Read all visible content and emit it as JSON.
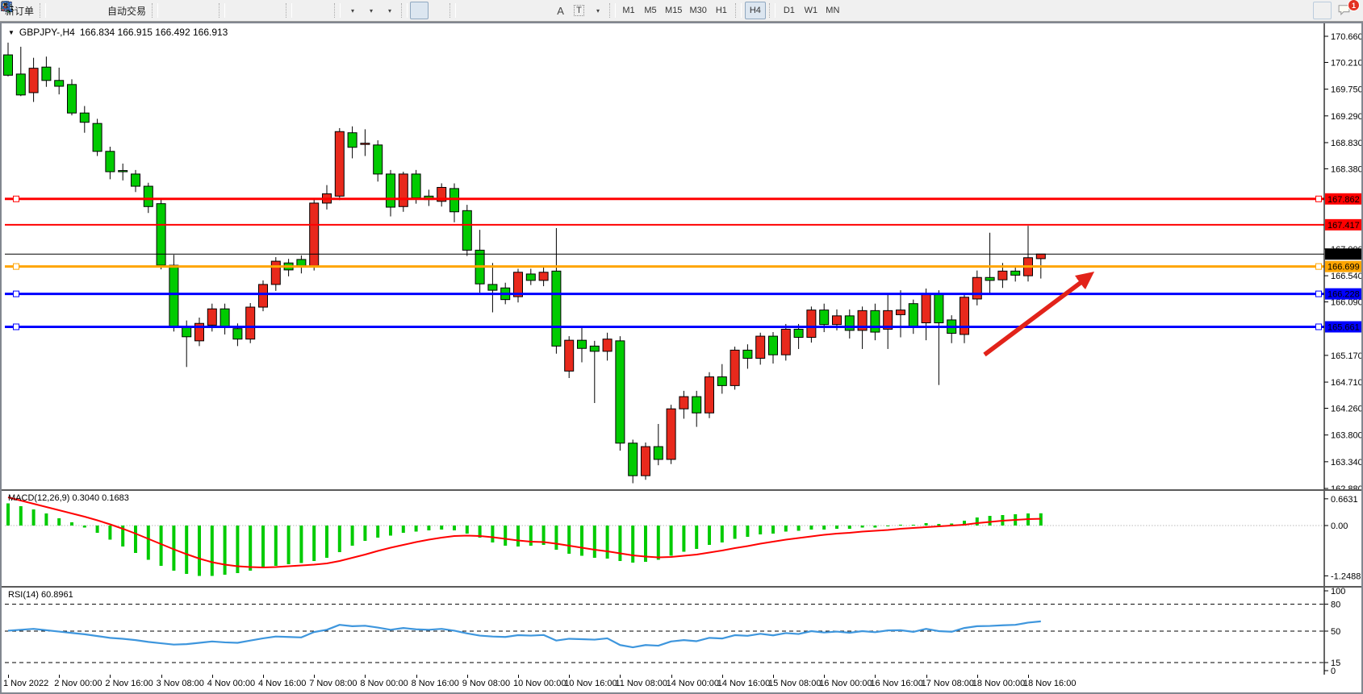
{
  "toolbar": {
    "new_order": "新订单",
    "auto_trading": "自动交易",
    "text_tool": "A",
    "label_tool": "T",
    "timeframes": [
      "M1",
      "M5",
      "M15",
      "M30",
      "H1",
      "H4",
      "D1",
      "W1",
      "MN"
    ],
    "active_timeframe": "H4",
    "chat_badge": "1"
  },
  "header": {
    "symbol": "GBPJPY-,H4",
    "ohlc": "166.834 166.915 166.492 166.913"
  },
  "price_axis": {
    "ticks": [
      170.66,
      170.21,
      169.75,
      169.29,
      168.83,
      168.38,
      167.0,
      166.54,
      166.09,
      165.17,
      164.71,
      164.26,
      163.8,
      163.34,
      162.88
    ]
  },
  "time_axis": {
    "labels": [
      "1 Nov 2022",
      "2 Nov 00:00",
      "2 Nov 16:00",
      "3 Nov 08:00",
      "4 Nov 00:00",
      "4 Nov 16:00",
      "7 Nov 08:00",
      "8 Nov 00:00",
      "8 Nov 16:00",
      "9 Nov 08:00",
      "10 Nov 00:00",
      "10 Nov 16:00",
      "11 Nov 08:00",
      "14 Nov 00:00",
      "14 Nov 16:00",
      "15 Nov 08:00",
      "16 Nov 00:00",
      "16 Nov 16:00",
      "17 Nov 08:00",
      "18 Nov 00:00",
      "18 Nov 16:00"
    ],
    "candles_per_label": 4
  },
  "hlines": [
    {
      "name": "resistance-1",
      "price": 167.862,
      "label": "167.862",
      "color": "#FF0000",
      "width": 3,
      "handles": true
    },
    {
      "name": "resistance-2",
      "price": 167.417,
      "label": "167.417",
      "color": "#FF0000",
      "width": 2,
      "handles": false
    },
    {
      "name": "current-price",
      "price": 166.913,
      "label": "166.913",
      "color": "#000000",
      "width": 1,
      "handles": false
    },
    {
      "name": "pivot-orange",
      "price": 166.699,
      "label": "166.699",
      "color": "#FFA500",
      "width": 3,
      "handles": true
    },
    {
      "name": "support-1",
      "price": 166.228,
      "label": "166.228",
      "color": "#0000FF",
      "width": 3,
      "handles": true
    },
    {
      "name": "support-2",
      "price": 165.661,
      "label": "165.661",
      "color": "#0000FF",
      "width": 3,
      "handles": true
    }
  ],
  "annotation_arrow": {
    "color": "#e2231a",
    "from_price": 165.05,
    "to_price": 166.48,
    "direction": "up-right"
  },
  "macd_panel": {
    "label": "MACD(12,26,9) 0.3040 0.1683",
    "scale_labels": [
      "0.6631",
      "0.00",
      "-1.2488"
    ],
    "scale_values": [
      0.6631,
      0.0,
      -1.2488
    ]
  },
  "rsi_panel": {
    "label": "RSI(14) 60.8961",
    "level_labels": [
      "100",
      "80",
      "50",
      "15",
      "0"
    ],
    "level_values": [
      100,
      80,
      50,
      15,
      0
    ],
    "dashed_levels": [
      80,
      50,
      15
    ]
  },
  "chart_data": {
    "type": "candlestick",
    "symbol": "GBPJPY-",
    "timeframe": "H4",
    "quote": {
      "open": 166.834,
      "high": 166.915,
      "low": 166.492,
      "close": 166.913
    },
    "price_range": [
      162.88,
      170.66
    ],
    "color_convention": "red=up, green=down (CN)",
    "candles_ohlc": [
      [
        170.34,
        170.55,
        169.97,
        169.99
      ],
      [
        170.01,
        170.48,
        169.63,
        169.65
      ],
      [
        169.69,
        170.29,
        169.53,
        170.11
      ],
      [
        170.13,
        170.31,
        169.79,
        169.9
      ],
      [
        169.9,
        170.12,
        169.66,
        169.8
      ],
      [
        169.83,
        169.92,
        169.3,
        169.34
      ],
      [
        169.34,
        169.46,
        169.0,
        169.18
      ],
      [
        169.16,
        169.24,
        168.6,
        168.68
      ],
      [
        168.68,
        168.76,
        168.2,
        168.33
      ],
      [
        168.35,
        168.47,
        168.18,
        168.33
      ],
      [
        168.29,
        168.36,
        167.98,
        168.08
      ],
      [
        168.08,
        168.14,
        167.62,
        167.73
      ],
      [
        167.78,
        167.86,
        166.65,
        166.72
      ],
      [
        166.72,
        166.9,
        165.58,
        165.67
      ],
      [
        165.67,
        165.77,
        164.97,
        165.49
      ],
      [
        165.42,
        165.82,
        165.33,
        165.72
      ],
      [
        165.69,
        166.06,
        165.58,
        165.97
      ],
      [
        165.97,
        166.06,
        165.53,
        165.67
      ],
      [
        165.63,
        165.72,
        165.33,
        165.45
      ],
      [
        165.45,
        166.07,
        165.38,
        166.0
      ],
      [
        166.0,
        166.46,
        165.93,
        166.39
      ],
      [
        166.39,
        166.86,
        166.28,
        166.79
      ],
      [
        166.76,
        166.83,
        166.53,
        166.64
      ],
      [
        166.82,
        166.89,
        166.58,
        166.71
      ],
      [
        166.71,
        167.86,
        166.63,
        167.79
      ],
      [
        167.79,
        168.1,
        167.68,
        167.95
      ],
      [
        167.91,
        169.08,
        167.84,
        169.02
      ],
      [
        169.0,
        169.11,
        168.56,
        168.75
      ],
      [
        168.8,
        169.06,
        168.6,
        168.82
      ],
      [
        168.79,
        168.87,
        168.16,
        168.29
      ],
      [
        168.29,
        168.36,
        167.56,
        167.72
      ],
      [
        167.73,
        168.33,
        167.64,
        168.29
      ],
      [
        168.29,
        168.36,
        167.78,
        167.88
      ],
      [
        167.91,
        168.02,
        167.74,
        167.85
      ],
      [
        167.82,
        168.13,
        167.73,
        168.06
      ],
      [
        168.04,
        168.13,
        167.46,
        167.64
      ],
      [
        167.66,
        167.76,
        166.88,
        166.98
      ],
      [
        166.98,
        167.33,
        166.25,
        166.4
      ],
      [
        166.39,
        166.76,
        165.91,
        166.29
      ],
      [
        166.33,
        166.42,
        166.05,
        166.13
      ],
      [
        166.18,
        166.66,
        166.08,
        166.6
      ],
      [
        166.57,
        166.66,
        166.38,
        166.46
      ],
      [
        166.46,
        166.68,
        166.36,
        166.6
      ],
      [
        166.62,
        167.36,
        165.2,
        165.33
      ],
      [
        164.9,
        165.5,
        164.78,
        165.43
      ],
      [
        165.43,
        165.66,
        165.05,
        165.29
      ],
      [
        165.33,
        165.42,
        164.35,
        165.24
      ],
      [
        165.24,
        165.56,
        165.08,
        165.45
      ],
      [
        165.42,
        165.5,
        163.53,
        163.66
      ],
      [
        163.66,
        163.72,
        162.97,
        163.1
      ],
      [
        163.1,
        163.67,
        163.03,
        163.6
      ],
      [
        163.6,
        163.99,
        163.28,
        163.38
      ],
      [
        163.38,
        164.32,
        163.3,
        164.25
      ],
      [
        164.25,
        164.56,
        164.08,
        164.46
      ],
      [
        164.46,
        164.56,
        163.94,
        164.18
      ],
      [
        164.18,
        164.88,
        164.09,
        164.8
      ],
      [
        164.8,
        165.02,
        164.51,
        164.65
      ],
      [
        164.65,
        165.32,
        164.58,
        165.26
      ],
      [
        165.26,
        165.36,
        164.94,
        165.12
      ],
      [
        165.12,
        165.56,
        165.01,
        165.5
      ],
      [
        165.5,
        165.57,
        165.03,
        165.18
      ],
      [
        165.18,
        165.71,
        165.08,
        165.62
      ],
      [
        165.62,
        165.71,
        165.28,
        165.48
      ],
      [
        165.48,
        166.01,
        165.39,
        165.95
      ],
      [
        165.95,
        166.06,
        165.57,
        165.7
      ],
      [
        165.7,
        165.96,
        165.6,
        165.85
      ],
      [
        165.85,
        165.96,
        165.46,
        165.6
      ],
      [
        165.6,
        166.01,
        165.28,
        165.94
      ],
      [
        165.94,
        166.06,
        165.43,
        165.57
      ],
      [
        165.62,
        166.23,
        165.28,
        165.94
      ],
      [
        165.87,
        166.29,
        165.48,
        165.95
      ],
      [
        166.06,
        166.13,
        165.54,
        165.66
      ],
      [
        165.73,
        166.32,
        165.43,
        166.23
      ],
      [
        166.22,
        166.29,
        164.66,
        165.73
      ],
      [
        165.78,
        165.86,
        165.38,
        165.55
      ],
      [
        165.53,
        166.24,
        165.38,
        166.17
      ],
      [
        166.14,
        166.63,
        166.03,
        166.51
      ],
      [
        166.51,
        167.28,
        166.22,
        166.46
      ],
      [
        166.47,
        166.76,
        166.33,
        166.62
      ],
      [
        166.62,
        166.71,
        166.44,
        166.55
      ],
      [
        166.54,
        167.4,
        166.44,
        166.85
      ],
      [
        166.834,
        166.915,
        166.492,
        166.913
      ]
    ],
    "macd_histogram": [
      0.55,
      0.48,
      0.4,
      0.3,
      0.18,
      0.08,
      -0.05,
      -0.18,
      -0.35,
      -0.52,
      -0.68,
      -0.85,
      -1.0,
      -1.12,
      -1.2,
      -1.25,
      -1.25,
      -1.22,
      -1.18,
      -1.12,
      -1.06,
      -1.0,
      -0.96,
      -0.93,
      -0.88,
      -0.8,
      -0.66,
      -0.5,
      -0.38,
      -0.3,
      -0.25,
      -0.18,
      -0.15,
      -0.12,
      -0.1,
      -0.12,
      -0.2,
      -0.3,
      -0.42,
      -0.5,
      -0.52,
      -0.5,
      -0.48,
      -0.6,
      -0.7,
      -0.75,
      -0.8,
      -0.82,
      -0.88,
      -0.92,
      -0.9,
      -0.85,
      -0.75,
      -0.65,
      -0.58,
      -0.48,
      -0.42,
      -0.33,
      -0.28,
      -0.22,
      -0.2,
      -0.15,
      -0.13,
      -0.1,
      -0.1,
      -0.08,
      -0.08,
      -0.05,
      -0.05,
      -0.02,
      0.02,
      0.02,
      0.06,
      0.04,
      0.05,
      0.12,
      0.2,
      0.24,
      0.26,
      0.28,
      0.3,
      0.304
    ],
    "macd_signal": [
      0.7,
      0.62,
      0.54,
      0.46,
      0.38,
      0.3,
      0.22,
      0.13,
      0.03,
      -0.08,
      -0.2,
      -0.33,
      -0.46,
      -0.59,
      -0.71,
      -0.82,
      -0.91,
      -0.97,
      -1.01,
      -1.03,
      -1.04,
      -1.03,
      -1.01,
      -0.99,
      -0.97,
      -0.94,
      -0.88,
      -0.8,
      -0.72,
      -0.63,
      -0.55,
      -0.48,
      -0.41,
      -0.35,
      -0.3,
      -0.26,
      -0.25,
      -0.26,
      -0.29,
      -0.33,
      -0.37,
      -0.4,
      -0.41,
      -0.45,
      -0.5,
      -0.55,
      -0.6,
      -0.64,
      -0.69,
      -0.74,
      -0.77,
      -0.79,
      -0.78,
      -0.75,
      -0.72,
      -0.67,
      -0.62,
      -0.56,
      -0.51,
      -0.45,
      -0.4,
      -0.35,
      -0.31,
      -0.27,
      -0.23,
      -0.2,
      -0.18,
      -0.15,
      -0.13,
      -0.11,
      -0.08,
      -0.06,
      -0.04,
      -0.02,
      0.0,
      0.02,
      0.06,
      0.09,
      0.12,
      0.14,
      0.16,
      0.1683
    ],
    "rsi": [
      50.5,
      51.5,
      52.5,
      51,
      49.5,
      48,
      46.5,
      44.5,
      42.5,
      41.5,
      40,
      38,
      36.5,
      35,
      35.5,
      37,
      38.5,
      37.5,
      37,
      39.5,
      42,
      44,
      43.5,
      43,
      49,
      51.5,
      57,
      55.5,
      56,
      54,
      51.5,
      53.5,
      52,
      51.5,
      52.5,
      50.5,
      47.5,
      45,
      44,
      43.5,
      45.5,
      45,
      45.7,
      39.5,
      41.5,
      41,
      40.5,
      42,
      34.5,
      32,
      34.5,
      33.8,
      38.5,
      40,
      38.8,
      42.5,
      41.8,
      45.5,
      44.8,
      47,
      45.3,
      47.8,
      46.8,
      50,
      48.5,
      49.5,
      48.2,
      50,
      48.8,
      50.8,
      51,
      49.2,
      52.5,
      50,
      49.3,
      53.5,
      55.5,
      55.8,
      56.5,
      57,
      59.5,
      60.9
    ]
  },
  "colors": {
    "candle_up": "#E8291C",
    "candle_down": "#00CB00",
    "candle_outline": "#000000",
    "macd_hist": "#00CB00",
    "macd_signal": "#FF0000",
    "rsi_line": "#3E96DD",
    "axis_line": "#000000",
    "arrow": "#E2231A"
  }
}
